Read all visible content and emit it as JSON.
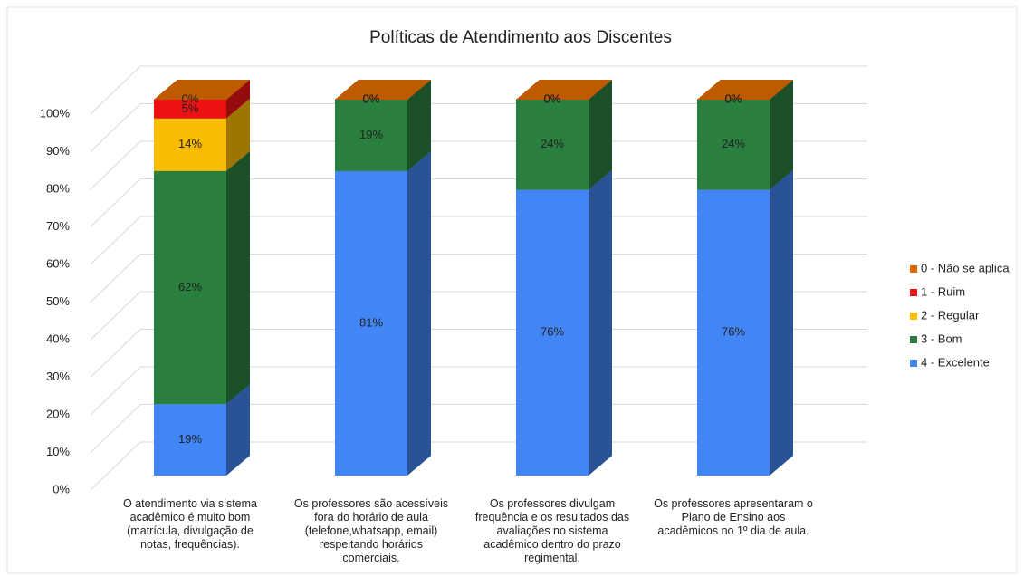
{
  "chart_data": {
    "type": "bar3d_stacked",
    "title": "Políticas de Atendimento  aos Discentes",
    "categories": [
      "O atendimento via sistema acadêmico é muito bom (matrícula, divulgação de notas, frequências).",
      "Os professores são acessíveis fora do horário de aula (telefone,whatsapp, email) respeitando horários comerciais.",
      "Os professores divulgam frequência e os resultados das avaliações no sistema acadêmico dentro do prazo regimental.",
      "Os professores apresentaram o Plano de Ensino aos acadêmicos no 1º dia de aula."
    ],
    "series": [
      {
        "name": "4 - Excelente",
        "color": "#4285f4",
        "values": [
          19,
          81,
          76,
          76
        ],
        "value_labels": [
          "19%",
          "81%",
          "76%",
          "76%"
        ]
      },
      {
        "name": "3 - Bom",
        "color": "#2a7f3f",
        "values": [
          62,
          19,
          24,
          24
        ],
        "value_labels": [
          "62%",
          "19%",
          "24%",
          "24%"
        ]
      },
      {
        "name": "2 - Regular",
        "color": "#fbbc04",
        "values": [
          14,
          0,
          0,
          0
        ],
        "value_labels": [
          "14%",
          "0%",
          "0%",
          "0%"
        ]
      },
      {
        "name": "1 - Ruim",
        "color": "#ee1111",
        "values": [
          5,
          0,
          0,
          0
        ],
        "value_labels": [
          "5%",
          "0%",
          "0%",
          "0%"
        ]
      },
      {
        "name": "0 - Não se aplica",
        "color": "#e06a00",
        "values": [
          0,
          0,
          0,
          0
        ],
        "value_labels": [
          "0%",
          "0%",
          "0%",
          "0%"
        ]
      }
    ],
    "ylim": [
      0,
      100
    ],
    "yticks": [
      {
        "value": 0,
        "label": "0%"
      },
      {
        "value": 10,
        "label": "10%"
      },
      {
        "value": 20,
        "label": "20%"
      },
      {
        "value": 30,
        "label": "30%"
      },
      {
        "value": 40,
        "label": "40%"
      },
      {
        "value": 50,
        "label": "50%"
      },
      {
        "value": 60,
        "label": "60%"
      },
      {
        "value": 70,
        "label": "70%"
      },
      {
        "value": 80,
        "label": "80%"
      },
      {
        "value": 90,
        "label": "90%"
      },
      {
        "value": 100,
        "label": "100%"
      }
    ],
    "grid": true,
    "legend": "right"
  }
}
